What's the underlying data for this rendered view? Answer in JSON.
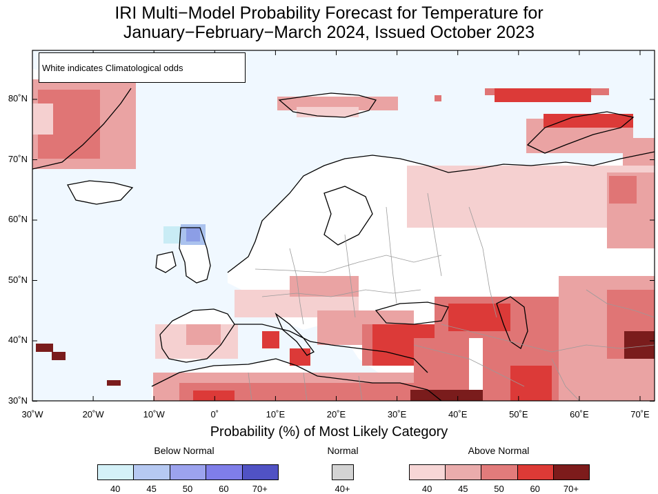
{
  "title": {
    "line1": "IRI Multi−Model Probability Forecast for Temperature for",
    "line2": "January−February−March 2024, Issued October 2023"
  },
  "map": {
    "note": "White indicates Climatological odds",
    "lat_labels": [
      "80˚N",
      "70˚N",
      "60˚N",
      "50˚N",
      "40˚N",
      "30˚N"
    ],
    "lon_labels": [
      "30˚W",
      "20˚W",
      "10˚W",
      "0˚",
      "10˚E",
      "20˚E",
      "30˚E",
      "40˚E",
      "50˚E",
      "60˚E",
      "70˚E"
    ],
    "colors": {
      "ocean_climatology": "#f0f8ff",
      "above_40": "#f5d0d0",
      "above_45": "#eaa3a3",
      "above_50": "#e07575",
      "above_60": "#dc3a38",
      "above_70": "#7a1c1c",
      "below_40": "#c9ecf5",
      "below_45": "#aac2ee",
      "below_50": "#8c9ee6"
    }
  },
  "legend": {
    "title": "Probability (%) of Most Likely Category",
    "below": {
      "label": "Below Normal",
      "swatches": [
        {
          "color": "#d4f1f8",
          "label": "40"
        },
        {
          "color": "#b6c9f2",
          "label": "45"
        },
        {
          "color": "#9ca3ee",
          "label": "50"
        },
        {
          "color": "#7f7ee9",
          "label": "60"
        },
        {
          "color": "#5052c4",
          "label": "70+"
        }
      ]
    },
    "normal": {
      "label": "Normal",
      "swatches": [
        {
          "color": "#d3d3d3",
          "label": "40+"
        }
      ]
    },
    "above": {
      "label": "Above Normal",
      "swatches": [
        {
          "color": "#f7d6d6",
          "label": "40"
        },
        {
          "color": "#eaacac",
          "label": "45"
        },
        {
          "color": "#e27b7b",
          "label": "50"
        },
        {
          "color": "#dd3a36",
          "label": "60"
        },
        {
          "color": "#7d1b1b",
          "label": "70+"
        }
      ]
    }
  }
}
